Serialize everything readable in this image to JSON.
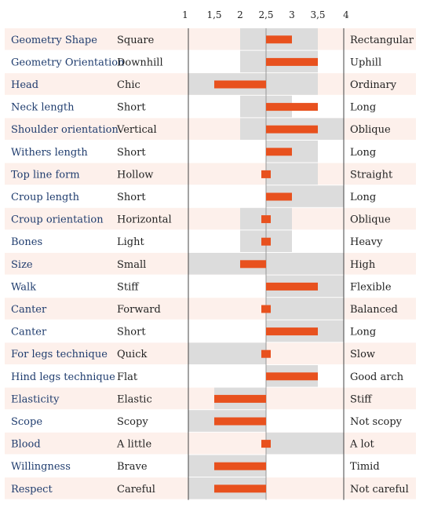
{
  "chart_data": {
    "type": "bar",
    "orientation": "horizontal",
    "description_style": "linear profile / deviation bars from a midpoint",
    "x_ticks": [
      "1",
      "1,5",
      "2",
      "2,5",
      "3",
      "3,5",
      "4"
    ],
    "x_tick_values": [
      1,
      1.5,
      2,
      2.5,
      3,
      3.5,
      4
    ],
    "xlim": [
      1,
      4
    ],
    "midpoint": 2.5,
    "grid": false,
    "legend": "none",
    "rows": [
      {
        "trait": "Geometry Shape",
        "low": "Square",
        "high": "Rectangular",
        "range": [
          2,
          3.5
        ],
        "value": 3
      },
      {
        "trait": "Geometry Orientation",
        "low": "Downhill",
        "high": "Uphill",
        "range": [
          2,
          3.5
        ],
        "value": 3.5
      },
      {
        "trait": "Head",
        "low": "Chic",
        "high": "Ordinary",
        "range": [
          1,
          3.5
        ],
        "value": 1.5
      },
      {
        "trait": "Neck length",
        "low": "Short",
        "high": "Long",
        "range": [
          2,
          3
        ],
        "value": 3.5
      },
      {
        "trait": "Shoulder orientation",
        "low": "Vertical",
        "high": "Oblique",
        "range": [
          2,
          4
        ],
        "value": 3.5
      },
      {
        "trait": "Withers length",
        "low": "Short",
        "high": "Long",
        "range": [
          2.5,
          3.5
        ],
        "value": 3
      },
      {
        "trait": "Top line form",
        "low": "Hollow",
        "high": "Straight",
        "range": [
          2.5,
          3.5
        ],
        "value": 2.5
      },
      {
        "trait": "Croup length",
        "low": "Short",
        "high": "Long",
        "range": [
          2.5,
          4
        ],
        "value": 3
      },
      {
        "trait": "Croup orientation",
        "low": "Horizontal",
        "high": "Oblique",
        "range": [
          2,
          3
        ],
        "value": 2.5
      },
      {
        "trait": "Bones",
        "low": "Light",
        "high": "Heavy",
        "range": [
          2,
          3
        ],
        "value": 2.5
      },
      {
        "trait": "Size",
        "low": "Small",
        "high": "High",
        "range": [
          1,
          4
        ],
        "value": 2
      },
      {
        "trait": "Walk",
        "low": "Stiff",
        "high": "Flexible",
        "range": [
          2.5,
          4
        ],
        "value": 3.5
      },
      {
        "trait": "Canter",
        "low": "Forward",
        "high": "Balanced",
        "range": [
          2.5,
          4
        ],
        "value": 2.5
      },
      {
        "trait": "Canter",
        "low": "Short",
        "high": "Long",
        "range": [
          2.5,
          4
        ],
        "value": 3.5
      },
      {
        "trait": "For legs technique",
        "low": "Quick",
        "high": "Slow",
        "range": [
          1,
          2.5
        ],
        "value": 2.5
      },
      {
        "trait": "Hind legs technique",
        "low": "Flat",
        "high": "Good arch",
        "range": [
          2.5,
          3.5
        ],
        "value": 3.5
      },
      {
        "trait": "Elasticity",
        "low": "Elastic",
        "high": "Stiff",
        "range": [
          1.5,
          2.5
        ],
        "value": 1.5
      },
      {
        "trait": "Scope",
        "low": "Scopy",
        "high": "Not scopy",
        "range": [
          1,
          2.5
        ],
        "value": 1.5
      },
      {
        "trait": "Blood",
        "low": "A little",
        "high": "A lot",
        "range": [
          2.5,
          4
        ],
        "value": 2.5
      },
      {
        "trait": "Willingness",
        "low": "Brave",
        "high": "Timid",
        "range": [
          1,
          2.5
        ],
        "value": 1.5
      },
      {
        "trait": "Respect",
        "low": "Careful",
        "high": "Not careful",
        "range": [
          1,
          2.5
        ],
        "value": 1.5
      }
    ]
  },
  "colors": {
    "row_shade": "#fdf0eb",
    "range_band": "#dcdcdc",
    "value_bar": "#e8511e",
    "trait_text": "#1f3c6e",
    "text": "#222222",
    "axis_line": "#444444",
    "midline": "#999999"
  }
}
